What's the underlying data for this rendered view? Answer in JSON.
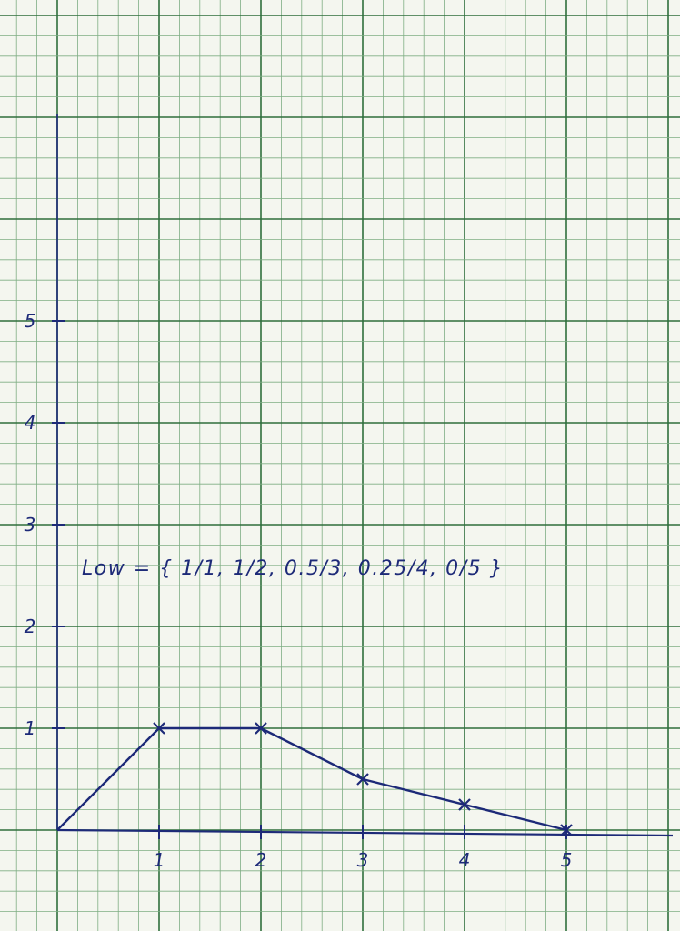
{
  "chart_data": {
    "type": "line",
    "title": "",
    "xlabel": "",
    "ylabel": "",
    "x_ticks": [
      "1",
      "2",
      "3",
      "4",
      "5"
    ],
    "y_ticks": [
      "1",
      "2",
      "3",
      "4",
      "5"
    ],
    "xlim": [
      0,
      6
    ],
    "ylim": [
      0,
      5
    ],
    "grid": true,
    "series": [
      {
        "x": [
          0,
          1,
          2,
          3,
          4,
          5
        ],
        "y": [
          0,
          1,
          1,
          0.5,
          0.25,
          0
        ]
      }
    ],
    "annotations": [
      {
        "text": "Low = { 1/1, 1/2, 0.5/3, 0.25/4, 0/5 }"
      }
    ]
  },
  "colors": {
    "paper": "#f4f6ef",
    "grid_fine": "#7fae84",
    "grid_major": "#2f6f3c",
    "ink": "#1d2a78"
  }
}
